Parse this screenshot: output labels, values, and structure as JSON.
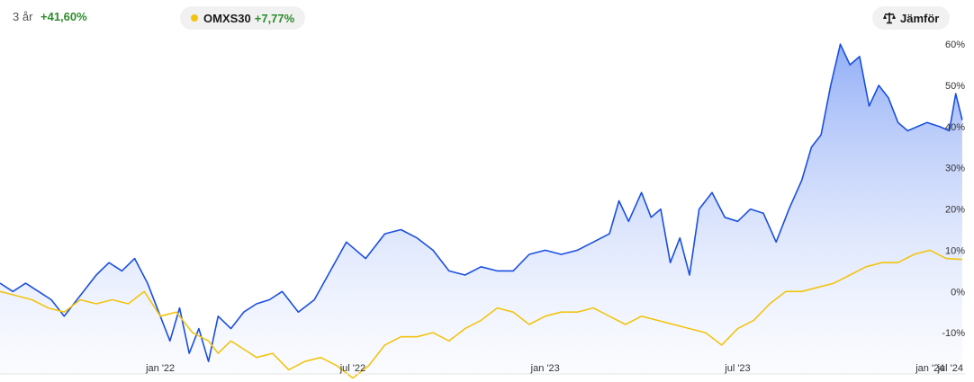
{
  "header": {
    "period": "3 år",
    "period_change": "+41,60%",
    "compare": {
      "name": "OMXS30",
      "change": "+7,77%",
      "dot_color": "#f2c40f"
    },
    "compare_button": "Jämför"
  },
  "chart_data": {
    "type": "area",
    "x_tick_labels": [
      "jan '22",
      "jul '22",
      "jan '23",
      "jul '23",
      "jan '24",
      "jul '24"
    ],
    "y_tick_labels": [
      "60%",
      "50%",
      "40%",
      "30%",
      "20%",
      "10%",
      "0%",
      "-10%"
    ],
    "ylim": [
      -20,
      62
    ],
    "y_ticks": [
      60,
      50,
      40,
      30,
      20,
      10,
      0,
      -10
    ],
    "grid": false,
    "series": [
      {
        "color": "#1a4fe0",
        "fill": true,
        "points": [
          [
            0,
            2
          ],
          [
            0.4,
            0
          ],
          [
            0.8,
            2
          ],
          [
            1.2,
            0
          ],
          [
            1.6,
            -2
          ],
          [
            2.0,
            -6
          ],
          [
            2.5,
            -1
          ],
          [
            3.0,
            4
          ],
          [
            3.4,
            7
          ],
          [
            3.8,
            5
          ],
          [
            4.2,
            8
          ],
          [
            4.6,
            2
          ],
          [
            5.0,
            -6
          ],
          [
            5.3,
            -12
          ],
          [
            5.6,
            -4
          ],
          [
            5.9,
            -15
          ],
          [
            6.2,
            -9
          ],
          [
            6.5,
            -17
          ],
          [
            6.8,
            -6
          ],
          [
            7.2,
            -9
          ],
          [
            7.6,
            -5
          ],
          [
            8.0,
            -3
          ],
          [
            8.4,
            -2
          ],
          [
            8.8,
            0
          ],
          [
            9.3,
            -5
          ],
          [
            9.8,
            -2
          ],
          [
            10.3,
            5
          ],
          [
            10.8,
            12
          ],
          [
            11.4,
            8
          ],
          [
            12.0,
            14
          ],
          [
            12.5,
            15
          ],
          [
            13.0,
            13
          ],
          [
            13.5,
            10
          ],
          [
            14.0,
            5
          ],
          [
            14.5,
            4
          ],
          [
            15.0,
            6
          ],
          [
            15.5,
            5
          ],
          [
            16.0,
            5
          ],
          [
            16.5,
            9
          ],
          [
            17.0,
            10
          ],
          [
            17.5,
            9
          ],
          [
            18.0,
            10
          ],
          [
            18.5,
            12
          ],
          [
            19.0,
            14
          ],
          [
            19.3,
            22
          ],
          [
            19.6,
            17
          ],
          [
            20.0,
            24
          ],
          [
            20.3,
            18
          ],
          [
            20.6,
            20
          ],
          [
            20.9,
            7
          ],
          [
            21.2,
            13
          ],
          [
            21.5,
            4
          ],
          [
            21.8,
            20
          ],
          [
            22.2,
            24
          ],
          [
            22.6,
            18
          ],
          [
            23.0,
            17
          ],
          [
            23.4,
            20
          ],
          [
            23.8,
            19
          ],
          [
            24.2,
            12
          ],
          [
            24.6,
            20
          ],
          [
            25.0,
            27
          ],
          [
            25.3,
            35
          ],
          [
            25.6,
            38
          ],
          [
            25.9,
            50
          ],
          [
            26.2,
            60
          ],
          [
            26.5,
            55
          ],
          [
            26.8,
            57
          ],
          [
            27.1,
            45
          ],
          [
            27.4,
            50
          ],
          [
            27.7,
            47
          ],
          [
            28.0,
            41
          ],
          [
            28.3,
            39
          ],
          [
            28.6,
            40
          ],
          [
            28.9,
            41
          ],
          [
            29.3,
            40
          ],
          [
            29.6,
            39
          ],
          [
            29.8,
            48
          ],
          [
            30.0,
            41.6
          ]
        ]
      },
      {
        "color": "#f2c40f",
        "fill": false,
        "points": [
          [
            0,
            0
          ],
          [
            0.5,
            -1
          ],
          [
            1.0,
            -2
          ],
          [
            1.5,
            -4
          ],
          [
            2.0,
            -5
          ],
          [
            2.5,
            -2
          ],
          [
            3.0,
            -3
          ],
          [
            3.5,
            -2
          ],
          [
            4.0,
            -3
          ],
          [
            4.5,
            0
          ],
          [
            5.0,
            -6
          ],
          [
            5.5,
            -5
          ],
          [
            6.0,
            -10
          ],
          [
            6.5,
            -12
          ],
          [
            6.8,
            -15
          ],
          [
            7.2,
            -12
          ],
          [
            7.6,
            -14
          ],
          [
            8.0,
            -16
          ],
          [
            8.5,
            -15
          ],
          [
            9.0,
            -19
          ],
          [
            9.5,
            -17
          ],
          [
            10.0,
            -16
          ],
          [
            10.5,
            -18
          ],
          [
            11.0,
            -21
          ],
          [
            11.5,
            -18
          ],
          [
            12.0,
            -13
          ],
          [
            12.5,
            -11
          ],
          [
            13.0,
            -11
          ],
          [
            13.5,
            -10
          ],
          [
            14.0,
            -12
          ],
          [
            14.5,
            -9
          ],
          [
            15.0,
            -7
          ],
          [
            15.5,
            -4
          ],
          [
            16.0,
            -5
          ],
          [
            16.5,
            -8
          ],
          [
            17.0,
            -6
          ],
          [
            17.5,
            -5
          ],
          [
            18.0,
            -5
          ],
          [
            18.5,
            -4
          ],
          [
            19.0,
            -6
          ],
          [
            19.5,
            -8
          ],
          [
            20.0,
            -6
          ],
          [
            20.5,
            -7
          ],
          [
            21.0,
            -8
          ],
          [
            21.5,
            -9
          ],
          [
            22.0,
            -10
          ],
          [
            22.5,
            -13
          ],
          [
            23.0,
            -9
          ],
          [
            23.5,
            -7
          ],
          [
            24.0,
            -3
          ],
          [
            24.5,
            0
          ],
          [
            25.0,
            0
          ],
          [
            25.5,
            1
          ],
          [
            26.0,
            2
          ],
          [
            26.5,
            4
          ],
          [
            27.0,
            6
          ],
          [
            27.5,
            7
          ],
          [
            28.0,
            7
          ],
          [
            28.5,
            9
          ],
          [
            29.0,
            10
          ],
          [
            29.5,
            8
          ],
          [
            30.0,
            7.77
          ]
        ]
      }
    ]
  }
}
